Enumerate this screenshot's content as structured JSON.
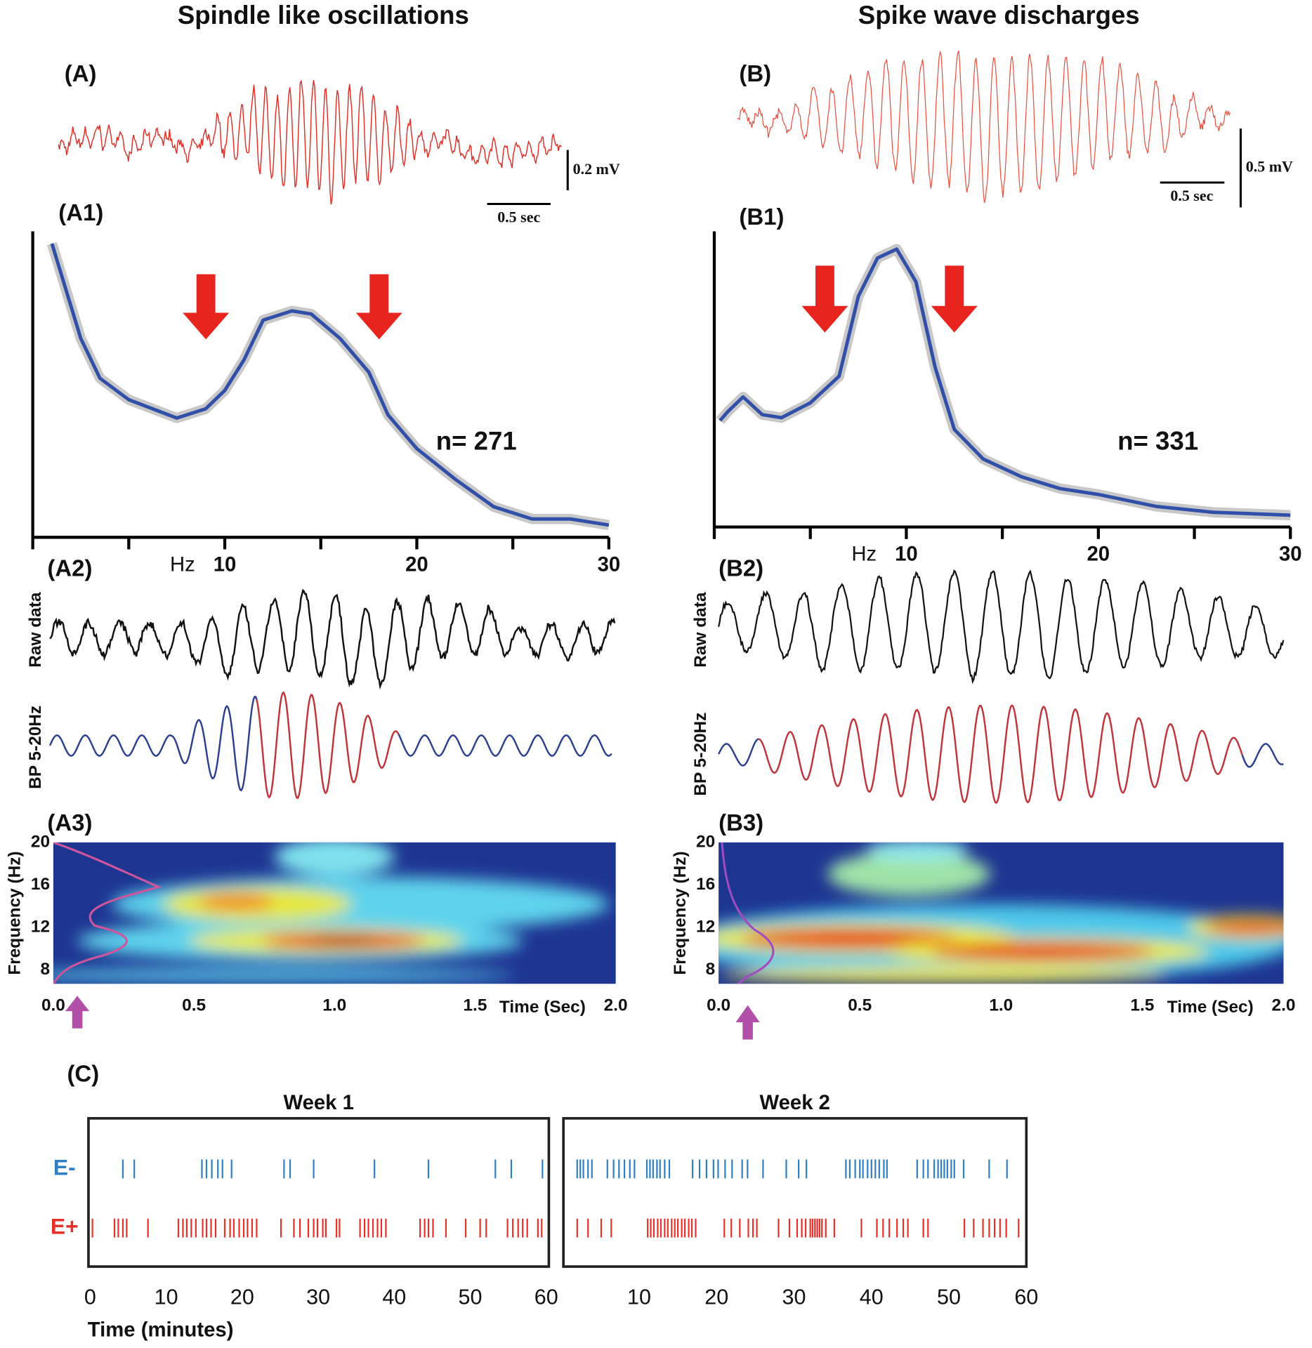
{
  "column_titles": [
    "Spindle like oscillations",
    "Spike wave discharges"
  ],
  "panel_labels": {
    "A": "(A)",
    "B": "(B)",
    "A1": "(A1)",
    "B1": "(B1)",
    "A2": "(A2)",
    "B2": "(B2)",
    "A3": "(A3)",
    "B3": "(B3)",
    "C": "(C)"
  },
  "scale_bars": {
    "A_voltage": "0.2 mV",
    "A_time": "0.5 sec",
    "B_voltage": "0.5 mV",
    "B_time": "0.5 sec"
  },
  "trace_labels": {
    "raw": "Raw data",
    "bandpass": "BP 5-20Hz"
  },
  "chart_data": [
    {
      "type": "line",
      "annotation": "n= 271",
      "xlabel": "Hz",
      "color": "#2f4fa8",
      "x": [
        1,
        2.5,
        3.5,
        5,
        7.5,
        9,
        10,
        11,
        12,
        13.5,
        14.5,
        16,
        17.5,
        18.5,
        20,
        22,
        24,
        26,
        28,
        30
      ],
      "values": [
        96,
        65,
        52,
        45,
        39,
        42,
        48,
        58,
        71,
        74,
        73,
        65,
        54,
        40,
        29,
        19,
        10,
        6,
        6,
        4
      ],
      "xlim": [
        0,
        30
      ],
      "ylim": [
        0,
        100
      ],
      "xticks": [
        10,
        20,
        30
      ],
      "xtick_marks": [
        0,
        5,
        10,
        15,
        20,
        25,
        30
      ]
    },
    {
      "type": "line",
      "annotation": "n= 331",
      "xlabel": "Hz",
      "color": "#2f4fa8",
      "x": [
        0.3,
        0.7,
        1.5,
        2.5,
        3.5,
        5,
        6,
        6.5,
        7.5,
        8.5,
        9.5,
        10.5,
        11.5,
        12.5,
        14,
        16,
        18,
        20,
        23,
        26,
        30
      ],
      "values": [
        36,
        39,
        44,
        38,
        37,
        42,
        48,
        51,
        78,
        91,
        94,
        83,
        54,
        33,
        23,
        17,
        13,
        11,
        7,
        5,
        4
      ],
      "xlim": [
        0,
        30
      ],
      "ylim": [
        0,
        100
      ],
      "xticks": [
        10,
        20,
        30
      ],
      "xtick_marks": [
        0,
        5,
        10,
        15,
        20,
        25,
        30
      ]
    },
    {
      "type": "spectrogram",
      "xlabel": "Time (Sec)",
      "ylabel": "Frequency (Hz)",
      "xlim": [
        0,
        2
      ],
      "ylim": [
        6.7,
        20
      ],
      "xticks": [
        {
          "value": 0,
          "label": "0.0"
        },
        0.5,
        {
          "value": 1,
          "label": "1.0"
        },
        1.5,
        {
          "value": 2,
          "label": "2.0"
        }
      ],
      "yticks": [
        8,
        12,
        16,
        20
      ]
    },
    {
      "type": "spectrogram",
      "xlabel": "Time (Sec)",
      "ylabel": "Frequency (Hz)",
      "xlim": [
        0,
        2
      ],
      "ylim": [
        6.7,
        20
      ],
      "xticks": [
        {
          "value": 0,
          "label": "0.0"
        },
        0.5,
        {
          "value": 1,
          "label": "1.0"
        },
        1.5,
        {
          "value": 2,
          "label": "2.0"
        }
      ],
      "yticks": [
        8,
        12,
        16,
        20
      ]
    },
    {
      "type": "raster",
      "xlabel": "Time (minutes)",
      "panels": [
        {
          "title": "Week 1",
          "xlim": [
            0,
            60
          ],
          "xticks": [
            0,
            10,
            20,
            30,
            40,
            50,
            60
          ],
          "series": [
            {
              "name": "E-",
              "color": "#2f7fc4",
              "values": [
                4.3,
                5.8,
                14.7,
                15.3,
                16.0,
                16.8,
                17.4,
                18.6,
                25.5,
                26.3,
                29.4,
                37.4,
                44.5,
                53.3,
                55.4,
                59.5
              ]
            },
            {
              "name": "E+",
              "color": "#e8302a",
              "values": [
                0.3,
                3.2,
                3.7,
                4.3,
                4.8,
                7.6,
                11.6,
                12.2,
                12.7,
                13.3,
                13.9,
                14.8,
                15.3,
                15.9,
                16.5,
                17.7,
                18.4,
                18.9,
                19.6,
                20.2,
                20.7,
                21.3,
                21.9,
                25.1,
                26.8,
                27.6,
                28.7,
                29.4,
                29.9,
                30.6,
                31.0,
                32.4,
                32.8,
                35.5,
                36.1,
                36.6,
                37.2,
                37.8,
                38.3,
                38.9,
                43.4,
                44.0,
                44.5,
                45.1,
                46.8,
                49.4,
                51.3,
                52.1,
                54.9,
                55.6,
                56.3,
                56.9,
                57.5,
                58.9,
                59.4
              ]
            }
          ]
        },
        {
          "title": "Week 2",
          "xlim": [
            0,
            60
          ],
          "xticks": [
            10,
            20,
            30,
            40,
            50,
            60
          ],
          "series": [
            {
              "name": "E-",
              "color": "#2f7fc4",
              "values": [
                2.0,
                2.4,
                2.8,
                3.4,
                3.9,
                5.9,
                6.7,
                7.4,
                8.1,
                8.8,
                9.4,
                11.0,
                11.4,
                11.8,
                12.3,
                12.7,
                13.3,
                13.9,
                16.9,
                17.8,
                18.7,
                19.6,
                20.2,
                21.1,
                22.0,
                23.3,
                24.0,
                26.0,
                29.0,
                30.6,
                31.6,
                36.7,
                37.2,
                37.9,
                38.5,
                38.9,
                39.5,
                40.0,
                40.5,
                41.0,
                41.6,
                42.0,
                45.9,
                46.7,
                47.3,
                48.1,
                48.6,
                49.0,
                49.4,
                49.8,
                50.3,
                50.7,
                51.9,
                55.2,
                57.5
              ]
            },
            {
              "name": "E+",
              "color": "#e8302a",
              "values": [
                2.0,
                3.4,
                5.1,
                6.4,
                11.1,
                11.5,
                11.9,
                12.4,
                12.8,
                13.3,
                13.7,
                14.2,
                14.6,
                15.0,
                15.5,
                15.9,
                16.4,
                16.8,
                17.3,
                21.0,
                21.9,
                23.0,
                24.1,
                24.7,
                25.2,
                28.0,
                29.4,
                30.4,
                31.0,
                31.5,
                32.1,
                32.4,
                32.7,
                33.0,
                33.3,
                33.6,
                34.1,
                35.2,
                38.7,
                40.7,
                41.5,
                42.3,
                43.3,
                44.1,
                44.7,
                46.7,
                47.3,
                52.0,
                53.2,
                54.4,
                55.2,
                55.9,
                56.6,
                57.4,
                59.0
              ]
            }
          ]
        }
      ]
    }
  ]
}
